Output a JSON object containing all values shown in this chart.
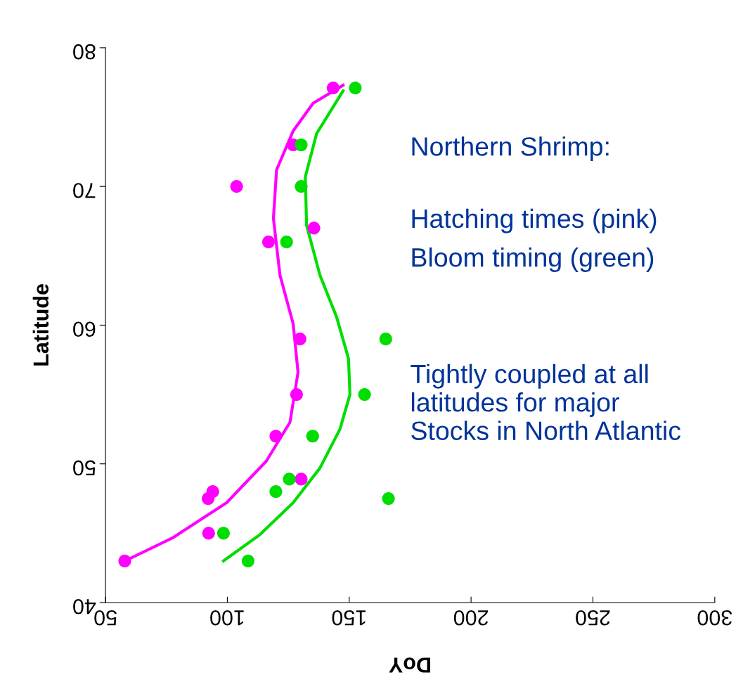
{
  "chart_data": {
    "type": "scatter",
    "xlabel": "DoY",
    "ylabel": "Latitude",
    "xlim": [
      50,
      300
    ],
    "xticks": [
      50,
      100,
      150,
      200,
      250,
      300
    ],
    "ylim": [
      40,
      80
    ],
    "yticks": [
      40,
      50,
      60,
      70,
      80
    ],
    "grid": false,
    "series": [
      {
        "marker": "circle",
        "color": "#ff00ff",
        "x": [
          143.4,
          127,
          103.8,
          116.9,
          135.5,
          129.8,
          128.4,
          119.9,
          130.3,
          94,
          92.1,
          92.3,
          57.9
        ],
        "values": [
          77.1,
          73.0,
          70.0,
          66.0,
          67.0,
          59.0,
          55.0,
          52.0,
          48.9,
          48.0,
          47.5,
          45.0,
          43.0
        ]
      },
      {
        "marker": "circle",
        "color": "#00dd00",
        "x": [
          152.5,
          130.3,
          130.3,
          124.3,
          165,
          156.3,
          135,
          125.4,
          119.9,
          166.1,
          98.4,
          108.5
        ],
        "values": [
          77.1,
          73.0,
          70.0,
          66.0,
          59.0,
          55.0,
          52.0,
          48.9,
          48.0,
          47.5,
          45.0,
          43.0
        ]
      },
      {
        "type": "line",
        "marker": "none",
        "color": "#ff00ff",
        "x": [
          58,
          77.9,
          99.7,
          116,
          125.7,
          129,
          127,
          121.6,
          118.9,
          120.2,
          127,
          135.2,
          147.5
        ],
        "values": [
          43,
          44.7,
          47.2,
          50.2,
          53,
          56.6,
          60.1,
          63.6,
          67.7,
          71.2,
          74,
          76,
          77.3
        ]
      },
      {
        "type": "line",
        "marker": "none",
        "color": "#00dd00",
        "x": [
          98.4,
          113.4,
          127,
          138,
          146.2,
          150.3,
          149.7,
          144.8,
          138,
          132.5,
          132,
          136.6,
          147.5
        ],
        "values": [
          43,
          44.9,
          47.2,
          49.7,
          52.5,
          55,
          57.6,
          60.6,
          63.6,
          67.2,
          70.7,
          73.8,
          76.9
        ]
      }
    ],
    "annotations": [
      "Northern Shrimp:",
      "Hatching times (pink)",
      "Bloom timing (green)",
      "Tightly coupled at all\nlatitudes for major\nStocks in North Atlantic"
    ]
  }
}
